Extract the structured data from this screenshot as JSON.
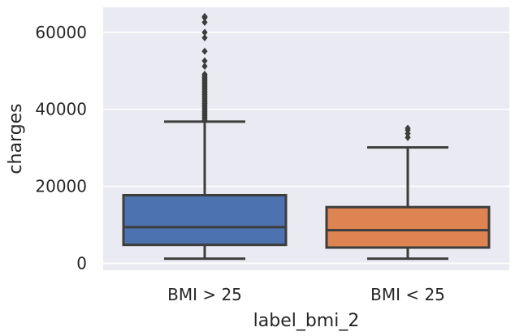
{
  "chart_data": {
    "type": "box",
    "xlabel": "label_bmi_2",
    "ylabel": "charges",
    "ylim": [
      -1800,
      66500
    ],
    "yticks": [
      0,
      20000,
      40000,
      60000
    ],
    "ytick_labels": [
      "0",
      "20000",
      "40000",
      "60000"
    ],
    "grid": true,
    "background": "#eaeaf2",
    "categories": [
      "BMI > 25",
      "BMI < 25"
    ],
    "boxes": [
      {
        "category": "BMI > 25",
        "color": "#4c72b0",
        "whisker_low": 1200,
        "q1": 4800,
        "median": 9400,
        "q3": 17700,
        "whisker_high": 36800,
        "outliers": [
          37100,
          37500,
          37900,
          38300,
          38700,
          39100,
          39500,
          39900,
          40300,
          40700,
          41100,
          41500,
          41900,
          42300,
          42700,
          43100,
          43500,
          43900,
          44300,
          44700,
          45100,
          45500,
          45900,
          46300,
          46700,
          47100,
          47500,
          47900,
          48300,
          48700,
          49100,
          51200,
          52600,
          55100,
          58600,
          60000,
          62600,
          63800,
          64100
        ]
      },
      {
        "category": "BMI < 25",
        "color": "#dd8452",
        "whisker_low": 1200,
        "q1": 4100,
        "median": 8600,
        "q3": 14600,
        "whisker_high": 30100,
        "outliers": [
          32700,
          33700,
          34600,
          35100
        ]
      }
    ]
  }
}
